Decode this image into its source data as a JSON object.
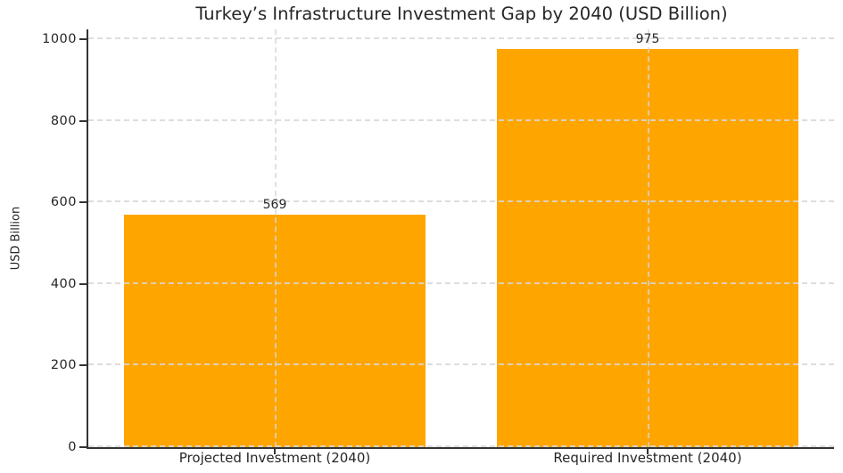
{
  "figure": {
    "background": "#ffffff"
  },
  "chart_data": {
    "type": "bar",
    "title": "Turkey’s Infrastructure Investment Gap by 2040 (USD Billion)",
    "categories": [
      "Projected Investment (2040)",
      "Required Investment (2040)"
    ],
    "values": [
      569,
      975
    ],
    "bar_labels": [
      "569",
      "975"
    ],
    "xlabel": "",
    "ylabel": "USD Billion",
    "ylim": [
      0,
      1024
    ],
    "yticks": [
      0,
      200,
      400,
      600,
      800,
      1000
    ],
    "grid": "dashed gridlines on both axes, drawn above bars",
    "legend": "none",
    "bar_color": "#FFA500",
    "text_color": "#262626",
    "spine_color": "#333333",
    "grid_color": "#d7d7d7"
  }
}
